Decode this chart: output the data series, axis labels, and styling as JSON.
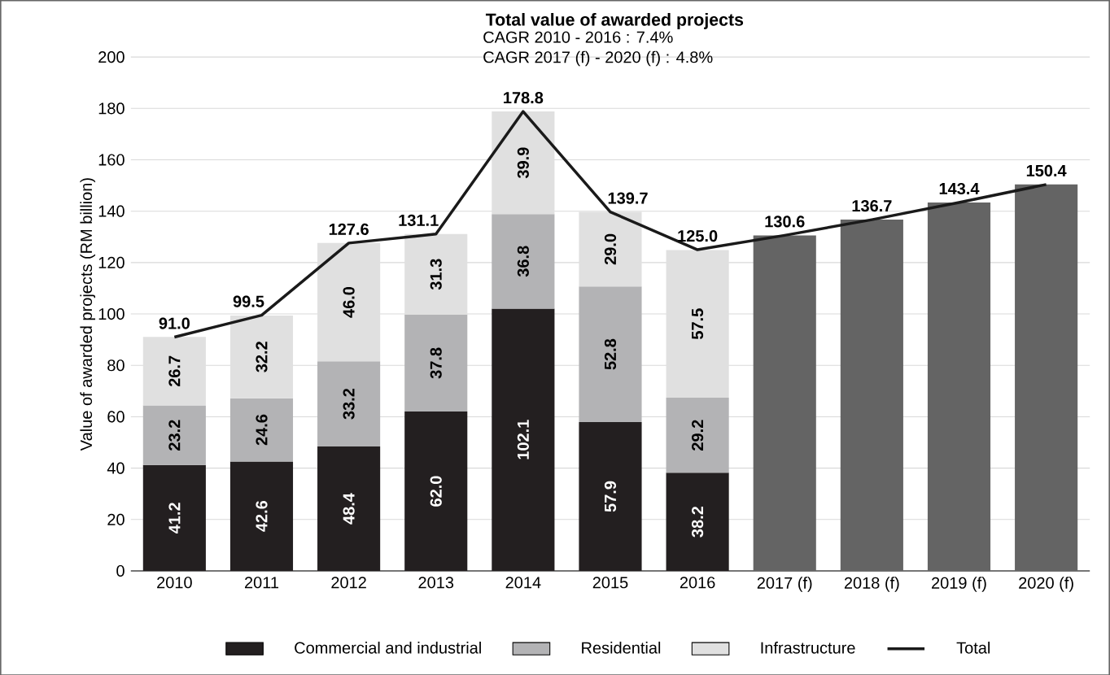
{
  "chart_data": {
    "type": "bar",
    "stacked": true,
    "title": "Total value of awarded projects",
    "annotations": [
      "CAGR 2010 - 2016 : 7.4%",
      "CAGR 2017 (f) - 2020 (f) : 4.8%"
    ],
    "ylabel": "Value of awarded projects (RM billion)",
    "categories": [
      "2010",
      "2011",
      "2012",
      "2013",
      "2014",
      "2015",
      "2016",
      "2017 (f)",
      "2018 (f)",
      "2019 (f)",
      "2020 (f)"
    ],
    "series": [
      {
        "name": "Commercial and industrial",
        "color": "#231f20",
        "values": [
          41.2,
          42.6,
          48.4,
          62.0,
          102.1,
          57.9,
          38.2,
          null,
          null,
          null,
          null
        ],
        "value_labels": [
          "41.2",
          "42.6",
          "48.4",
          "62.0",
          "102.1",
          "57.9",
          "38.2",
          null,
          null,
          null,
          null
        ]
      },
      {
        "name": "Residential",
        "color": "#b3b3b5",
        "values": [
          23.2,
          24.6,
          33.2,
          37.8,
          36.8,
          52.8,
          29.2,
          null,
          null,
          null,
          null
        ],
        "value_labels": [
          "23.2",
          "24.6",
          "33.2",
          "37.8",
          "36.8",
          "52.8",
          "29.2",
          null,
          null,
          null,
          null
        ]
      },
      {
        "name": "Infrastructure",
        "color": "#e0e0e0",
        "values": [
          26.7,
          32.2,
          46.0,
          31.3,
          39.9,
          29.0,
          57.5,
          null,
          null,
          null,
          null
        ],
        "value_labels": [
          "26.7",
          "32.2",
          "46.0",
          "31.3",
          "39.9",
          "29.0",
          "57.5",
          null,
          null,
          null,
          null
        ]
      },
      {
        "color": "#646464",
        "values": [
          null,
          null,
          null,
          null,
          null,
          null,
          null,
          130.6,
          136.7,
          143.4,
          150.4
        ]
      },
      {
        "name": "Total",
        "type": "line",
        "color": "#1a1a1a",
        "values": [
          91.0,
          99.5,
          127.6,
          131.1,
          178.8,
          139.7,
          125.0,
          130.6,
          136.7,
          143.4,
          150.4
        ],
        "value_labels": [
          "91.0",
          "99.5",
          "127.6",
          "131.1",
          "178.8",
          "139.7",
          "125.0",
          "130.6",
          "136.7",
          "143.4",
          "150.4"
        ]
      }
    ],
    "ylim": [
      0,
      200
    ],
    "yticks": [
      0,
      20,
      40,
      60,
      80,
      100,
      120,
      140,
      160,
      180,
      200
    ],
    "grid": "y",
    "legend": "bottom",
    "marker": "none",
    "line_style": "solid"
  }
}
